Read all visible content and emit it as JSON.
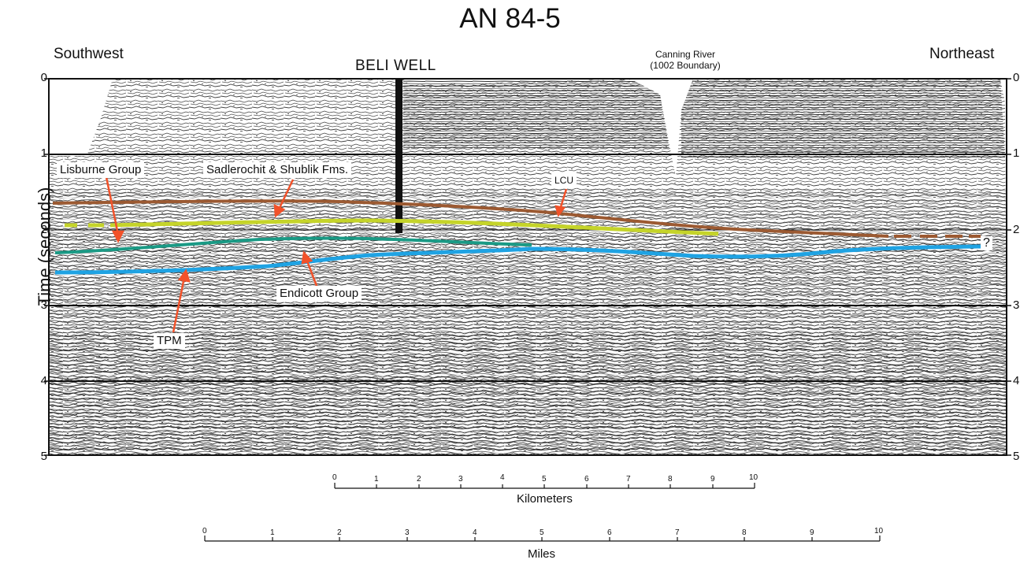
{
  "title": "AN 84-5",
  "directions": {
    "left": "Southwest",
    "right": "Northeast"
  },
  "well_label": "BELI  WELL",
  "canning_river": {
    "line1": "Canning River",
    "line2": "(1002 Boundary)"
  },
  "y_axis": {
    "label": "Time (seconds)",
    "ticks": [
      "0",
      "1",
      "2",
      "3",
      "4",
      "5"
    ]
  },
  "horizons": {
    "lisburne": "Lisburne Group",
    "sadlerochit": "Sadlerochit & Shublik Fms.",
    "lcu": "LCU",
    "endicott": "Endicott Group",
    "tpm": "TPM",
    "unknown": "?"
  },
  "colors": {
    "lcu": "#9c5a32",
    "sadlerochit": "#c5d42a",
    "lisburne": "#1a9a85",
    "tpm": "#1fa3e3",
    "arrow": "#f2522a"
  },
  "scale_km": {
    "label": "Kilometers",
    "ticks": [
      "0",
      "1",
      "2",
      "3",
      "4",
      "5",
      "6",
      "7",
      "8",
      "9",
      "10"
    ]
  },
  "scale_mi": {
    "label": "Miles",
    "ticks": [
      "0",
      "1",
      "2",
      "3",
      "4",
      "5",
      "6",
      "7",
      "8",
      "9",
      "10"
    ]
  }
}
